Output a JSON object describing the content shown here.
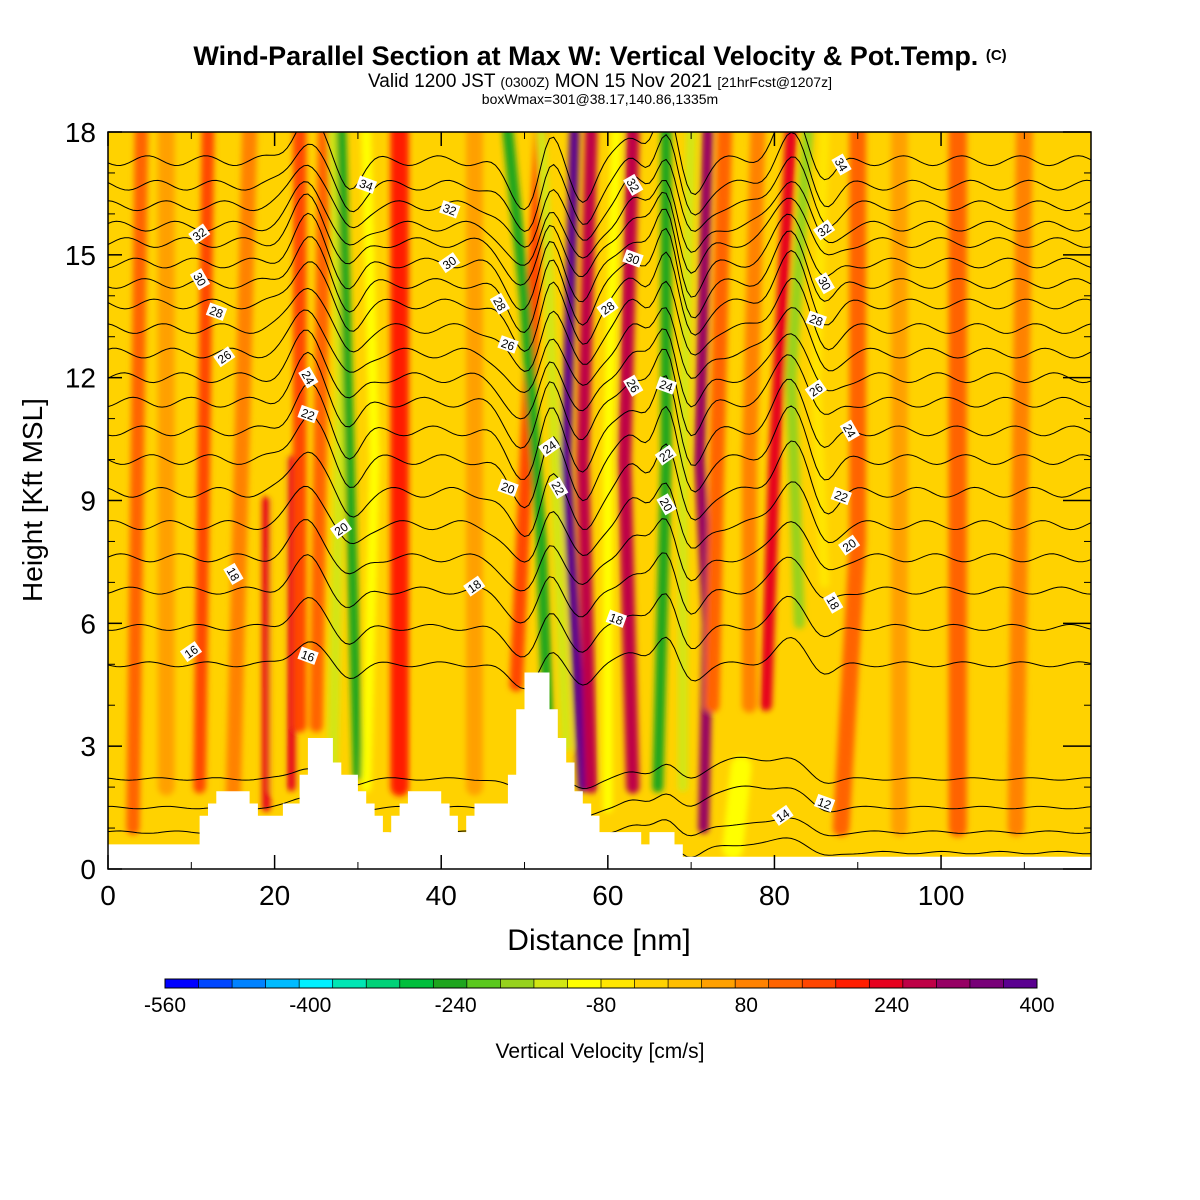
{
  "title": {
    "main": "Wind-Parallel Section at Max W: Vertical Velocity & Pot.Temp.",
    "copyright": "(C)",
    "valid_prefix": "Valid 1200 JST",
    "valid_zulu": "(0300Z)",
    "valid_date": "MON 15 Nov 2021",
    "forecast": "[21hrFcst@1207z]",
    "box_info": "boxWmax=301@38.17,140.86,1335m"
  },
  "chart_data": {
    "type": "heatmap",
    "xlabel": "Distance [nm]",
    "ylabel": "Height [Kft MSL]",
    "xlim": [
      0,
      118
    ],
    "ylim": [
      0,
      18
    ],
    "xticks": [
      0,
      20,
      40,
      60,
      80,
      100
    ],
    "yticks": [
      0,
      3,
      6,
      9,
      12,
      15,
      18
    ],
    "colorbar": {
      "label": "Vertical Velocity [cm/s]",
      "min": -560,
      "max": 400,
      "tick_labels": [
        "-560",
        "-400",
        "-240",
        "-80",
        "80",
        "240",
        "400"
      ],
      "colors": [
        "#0000ff",
        "#0047ff",
        "#0082ff",
        "#00bbff",
        "#00f0ff",
        "#00e6b4",
        "#00d278",
        "#00be3c",
        "#1ea51e",
        "#5ac81e",
        "#96d21e",
        "#d2e614",
        "#ffff00",
        "#ffe600",
        "#ffd200",
        "#ffbe00",
        "#ffa000",
        "#ff8200",
        "#ff6400",
        "#ff4600",
        "#ff1e00",
        "#e6001e",
        "#be0046",
        "#960064",
        "#780078",
        "#5a0090"
      ]
    },
    "background_color": "#ffd200",
    "terrain": [
      [
        0,
        0.6
      ],
      [
        11,
        0.6
      ],
      [
        11,
        1.3
      ],
      [
        12,
        1.3
      ],
      [
        12,
        1.6
      ],
      [
        13,
        1.6
      ],
      [
        13,
        1.9
      ],
      [
        17,
        1.9
      ],
      [
        17,
        1.6
      ],
      [
        18,
        1.6
      ],
      [
        18,
        1.3
      ],
      [
        21,
        1.3
      ],
      [
        21,
        1.6
      ],
      [
        23,
        1.6
      ],
      [
        23,
        2.3
      ],
      [
        24,
        2.3
      ],
      [
        24,
        3.2
      ],
      [
        27,
        3.2
      ],
      [
        27,
        2.6
      ],
      [
        28,
        2.6
      ],
      [
        28,
        2.3
      ],
      [
        30,
        2.3
      ],
      [
        30,
        1.9
      ],
      [
        31,
        1.9
      ],
      [
        31,
        1.6
      ],
      [
        32,
        1.6
      ],
      [
        32,
        1.3
      ],
      [
        33,
        1.3
      ],
      [
        33,
        0.9
      ],
      [
        34,
        0.9
      ],
      [
        34,
        1.3
      ],
      [
        35,
        1.3
      ],
      [
        35,
        1.6
      ],
      [
        36,
        1.6
      ],
      [
        36,
        1.9
      ],
      [
        40,
        1.9
      ],
      [
        40,
        1.6
      ],
      [
        41,
        1.6
      ],
      [
        41,
        1.3
      ],
      [
        42,
        1.3
      ],
      [
        42,
        0.9
      ],
      [
        43,
        0.9
      ],
      [
        43,
        1.3
      ],
      [
        44,
        1.3
      ],
      [
        44,
        1.6
      ],
      [
        48,
        1.6
      ],
      [
        48,
        2.3
      ],
      [
        49,
        2.3
      ],
      [
        49,
        3.9
      ],
      [
        50,
        3.9
      ],
      [
        50,
        4.8
      ],
      [
        53,
        4.8
      ],
      [
        53,
        3.9
      ],
      [
        54,
        3.9
      ],
      [
        54,
        3.2
      ],
      [
        55,
        3.2
      ],
      [
        55,
        2.6
      ],
      [
        56,
        2.6
      ],
      [
        56,
        1.9
      ],
      [
        57,
        1.9
      ],
      [
        57,
        1.6
      ],
      [
        58,
        1.6
      ],
      [
        58,
        1.3
      ],
      [
        59,
        1.3
      ],
      [
        59,
        0.9
      ],
      [
        64,
        0.9
      ],
      [
        64,
        0.6
      ],
      [
        65,
        0.6
      ],
      [
        65,
        0.9
      ],
      [
        66,
        0.9
      ],
      [
        68,
        0.9
      ],
      [
        68,
        0.6
      ],
      [
        69,
        0.6
      ],
      [
        69,
        0.3
      ],
      [
        118,
        0.3
      ]
    ],
    "bands": [
      {
        "path": [
          [
            3,
            1
          ],
          [
            4,
            18
          ]
        ],
        "value": 120,
        "width": 1.6
      },
      {
        "path": [
          [
            7,
            2
          ],
          [
            7,
            18
          ]
        ],
        "value": 40,
        "width": 2.0
      },
      {
        "path": [
          [
            11,
            2
          ],
          [
            12,
            18
          ]
        ],
        "value": 160,
        "width": 1.5
      },
      {
        "path": [
          [
            15,
            1.5
          ],
          [
            17,
            18
          ]
        ],
        "value": 90,
        "width": 1.8
      },
      {
        "path": [
          [
            20,
            2
          ],
          [
            21,
            17
          ]
        ],
        "value": -20,
        "width": 1.4
      },
      {
        "path": [
          [
            19,
            1.5
          ],
          [
            19,
            9
          ]
        ],
        "value": 230,
        "width": 1.0
      },
      {
        "path": [
          [
            22,
            2
          ],
          [
            22,
            10
          ]
        ],
        "value": 250,
        "width": 1.0
      },
      {
        "path": [
          [
            23,
            3.5
          ],
          [
            23,
            18
          ]
        ],
        "value": 170,
        "width": 1.6
      },
      {
        "path": [
          [
            25,
            3.5
          ],
          [
            26,
            18
          ]
        ],
        "value": 130,
        "width": 1.6
      },
      {
        "path": [
          [
            27,
            2.5
          ],
          [
            28,
            12
          ],
          [
            27,
            18
          ]
        ],
        "value": -150,
        "width": 1.3
      },
      {
        "path": [
          [
            30,
            2.3
          ],
          [
            29,
            10
          ],
          [
            28,
            18
          ]
        ],
        "value": -260,
        "width": 1.2
      },
      {
        "path": [
          [
            31,
            2
          ],
          [
            32,
            10
          ],
          [
            31,
            18
          ]
        ],
        "value": -90,
        "width": 1.2
      },
      {
        "path": [
          [
            35,
            2
          ],
          [
            35,
            18
          ]
        ],
        "value": 200,
        "width": 2.2
      },
      {
        "path": [
          [
            38,
            2
          ],
          [
            39,
            18
          ]
        ],
        "value": -20,
        "width": 1.8
      },
      {
        "path": [
          [
            44,
            2
          ],
          [
            44,
            18
          ]
        ],
        "value": 40,
        "width": 2.0
      },
      {
        "path": [
          [
            49,
            4.5
          ],
          [
            50,
            9
          ],
          [
            52,
            18
          ]
        ],
        "value": 170,
        "width": 1.6
      },
      {
        "path": [
          [
            53,
            2.5
          ],
          [
            52,
            8
          ],
          [
            50,
            14
          ],
          [
            48,
            18
          ]
        ],
        "value": -230,
        "width": 1.3
      },
      {
        "path": [
          [
            55,
            3
          ],
          [
            54,
            8
          ],
          [
            53,
            14
          ],
          [
            52,
            18
          ]
        ],
        "value": -120,
        "width": 1.2
      },
      {
        "path": [
          [
            57,
            2
          ],
          [
            55,
            10
          ],
          [
            56,
            18
          ]
        ],
        "value": 380,
        "width": 1.2
      },
      {
        "path": [
          [
            58,
            2
          ],
          [
            57,
            10
          ],
          [
            58,
            18
          ]
        ],
        "value": 260,
        "width": 1.5
      },
      {
        "path": [
          [
            60,
            1.5
          ],
          [
            60,
            10
          ],
          [
            61,
            18
          ]
        ],
        "value": -90,
        "width": 1.2
      },
      {
        "path": [
          [
            63,
            2
          ],
          [
            62,
            10
          ],
          [
            63,
            18
          ]
        ],
        "value": 260,
        "width": 1.6
      },
      {
        "path": [
          [
            66,
            2
          ],
          [
            67,
            10
          ],
          [
            67,
            18
          ]
        ],
        "value": -250,
        "width": 1.3
      },
      {
        "path": [
          [
            69,
            2
          ],
          [
            69,
            10
          ],
          [
            70,
            18
          ]
        ],
        "value": -120,
        "width": 1.2
      },
      {
        "path": [
          [
            71.5,
            1
          ],
          [
            72,
            6
          ],
          [
            71,
            10
          ],
          [
            72,
            18
          ]
        ],
        "value": 290,
        "width": 1.3
      },
      {
        "path": [
          [
            72.5,
            4
          ],
          [
            73,
            9
          ],
          [
            74,
            18
          ]
        ],
        "value": 130,
        "width": 1.8
      },
      {
        "path": [
          [
            77,
            4
          ],
          [
            77,
            10
          ],
          [
            78,
            18
          ]
        ],
        "value": 80,
        "width": 1.8
      },
      {
        "path": [
          [
            79,
            4
          ],
          [
            80,
            10
          ],
          [
            82,
            18
          ]
        ],
        "value": 220,
        "width": 1.4
      },
      {
        "path": [
          [
            83,
            6
          ],
          [
            82,
            12
          ],
          [
            84,
            18
          ]
        ],
        "value": -180,
        "width": 1.3
      },
      {
        "path": [
          [
            86,
            7
          ],
          [
            85,
            12
          ],
          [
            86,
            18
          ]
        ],
        "value": -60,
        "width": 1.2
      },
      {
        "path": [
          [
            88,
            1
          ],
          [
            90,
            8
          ],
          [
            90,
            18
          ]
        ],
        "value": 110,
        "width": 2.0
      },
      {
        "path": [
          [
            95,
            1
          ],
          [
            95,
            18
          ]
        ],
        "value": 40,
        "width": 2.0
      },
      {
        "path": [
          [
            102,
            1
          ],
          [
            102,
            18
          ]
        ],
        "value": 110,
        "width": 2.2
      },
      {
        "path": [
          [
            109,
            1
          ],
          [
            110,
            18
          ]
        ],
        "value": 70,
        "width": 2.0
      },
      {
        "path": [
          [
            75,
            0.5
          ],
          [
            76,
            2.5
          ]
        ],
        "value": -90,
        "width": 2.5
      }
    ],
    "isentropes": [
      {
        "theta": 12,
        "label_at": [
          86,
          1.6
        ]
      },
      {
        "theta": 13,
        "label_at": null
      },
      {
        "theta": 14,
        "label_at": [
          81,
          1.3
        ]
      },
      {
        "theta": 15,
        "label_at": null
      },
      {
        "theta": 16,
        "label_at": [
          10,
          5.3
        ]
      },
      {
        "theta": 17,
        "label_at": null
      },
      {
        "theta": 18,
        "label_at": [
          15,
          7.2
        ]
      },
      {
        "theta": 19,
        "label_at": null
      },
      {
        "theta": 20,
        "label_at": [
          28,
          8.3
        ]
      },
      {
        "theta": 21,
        "label_at": null
      },
      {
        "theta": 22,
        "label_at": [
          24,
          11.1
        ]
      },
      {
        "theta": 23,
        "label_at": null
      },
      {
        "theta": 24,
        "label_at": [
          24,
          12.0
        ]
      },
      {
        "theta": 25,
        "label_at": null
      },
      {
        "theta": 26,
        "label_at": [
          14,
          12.5
        ]
      },
      {
        "theta": 27,
        "label_at": null
      },
      {
        "theta": 28,
        "label_at": [
          13,
          13.6
        ]
      },
      {
        "theta": 29,
        "label_at": null
      },
      {
        "theta": 30,
        "label_at": [
          11,
          14.4
        ]
      },
      {
        "theta": 31,
        "label_at": null
      },
      {
        "theta": 32,
        "label_at": [
          11,
          15.5
        ]
      },
      {
        "theta": 33,
        "label_at": null
      },
      {
        "theta": 34,
        "label_at": [
          31,
          16.7
        ]
      },
      {
        "theta": 35,
        "label_at": null
      }
    ],
    "isentrope_base_heights": {
      "12": 0.4,
      "13": 0.9,
      "14": 1.5,
      "15": 2.2,
      "16": 5.0,
      "17": 5.9,
      "18": 6.8,
      "19": 7.6,
      "20": 8.4,
      "21": 9.2,
      "22": 10.0,
      "23": 10.7,
      "24": 11.4,
      "25": 12.0,
      "26": 12.6,
      "27": 13.2,
      "28": 13.8,
      "29": 14.3,
      "30": 14.8,
      "31": 15.3,
      "32": 15.7,
      "33": 16.2,
      "34": 16.7,
      "35": 17.3
    },
    "isentrope_labels": [
      {
        "text": "16",
        "x": 10,
        "y": 5.3
      },
      {
        "text": "16",
        "x": 24,
        "y": 5.2
      },
      {
        "text": "18",
        "x": 15,
        "y": 7.2
      },
      {
        "text": "18",
        "x": 44,
        "y": 6.9
      },
      {
        "text": "18",
        "x": 61,
        "y": 6.1
      },
      {
        "text": "18",
        "x": 87,
        "y": 6.5
      },
      {
        "text": "20",
        "x": 28,
        "y": 8.3
      },
      {
        "text": "20",
        "x": 48,
        "y": 9.3
      },
      {
        "text": "20",
        "x": 67,
        "y": 8.9
      },
      {
        "text": "20",
        "x": 89,
        "y": 7.9
      },
      {
        "text": "22",
        "x": 24,
        "y": 11.1
      },
      {
        "text": "22",
        "x": 54,
        "y": 9.3
      },
      {
        "text": "22",
        "x": 67,
        "y": 10.1
      },
      {
        "text": "22",
        "x": 88,
        "y": 9.1
      },
      {
        "text": "24",
        "x": 24,
        "y": 12.0
      },
      {
        "text": "24",
        "x": 53,
        "y": 10.3
      },
      {
        "text": "24",
        "x": 67,
        "y": 11.8
      },
      {
        "text": "24",
        "x": 89,
        "y": 10.7
      },
      {
        "text": "26",
        "x": 14,
        "y": 12.5
      },
      {
        "text": "26",
        "x": 48,
        "y": 12.8
      },
      {
        "text": "26",
        "x": 63,
        "y": 11.8
      },
      {
        "text": "26",
        "x": 85,
        "y": 11.7
      },
      {
        "text": "28",
        "x": 13,
        "y": 13.6
      },
      {
        "text": "28",
        "x": 47,
        "y": 13.8
      },
      {
        "text": "28",
        "x": 60,
        "y": 13.7
      },
      {
        "text": "28",
        "x": 85,
        "y": 13.4
      },
      {
        "text": "30",
        "x": 11,
        "y": 14.4
      },
      {
        "text": "30",
        "x": 41,
        "y": 14.8
      },
      {
        "text": "30",
        "x": 63,
        "y": 14.9
      },
      {
        "text": "30",
        "x": 86,
        "y": 14.3
      },
      {
        "text": "32",
        "x": 11,
        "y": 15.5
      },
      {
        "text": "32",
        "x": 41,
        "y": 16.1
      },
      {
        "text": "32",
        "x": 63,
        "y": 16.7
      },
      {
        "text": "32",
        "x": 86,
        "y": 15.6
      },
      {
        "text": "34",
        "x": 31,
        "y": 16.7
      },
      {
        "text": "34",
        "x": 88,
        "y": 17.2
      },
      {
        "text": "14",
        "x": 81,
        "y": 1.3
      },
      {
        "text": "12",
        "x": 86,
        "y": 1.6
      }
    ]
  }
}
